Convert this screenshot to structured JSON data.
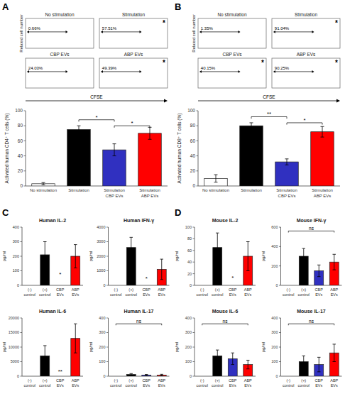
{
  "chart_data": [
    {
      "type": "flow",
      "panel": "A",
      "title": "No stimulation",
      "ylabel": "Related cell number",
      "xlabel": "CFSE",
      "annotations": [
        {
          "label": "0.66%"
        }
      ]
    },
    {
      "type": "flow",
      "title": "Stimulation",
      "annotations": [
        {
          "label": "57.51%"
        },
        {
          "label": "*"
        }
      ]
    },
    {
      "type": "flow",
      "title": "CBP EVs",
      "annotations": [
        {
          "label": "24.03%"
        }
      ]
    },
    {
      "type": "flow",
      "title": "ABP EVs",
      "annotations": [
        {
          "label": "49.39%"
        },
        {
          "label": "*"
        }
      ]
    },
    {
      "type": "bar",
      "ylabel": "Activated human CD4⁺ T cells (%)",
      "categories": [
        "No stimulation",
        "Stimulation",
        "Stimulation\nCBP EVs",
        "Stimulation\nABP EVs"
      ],
      "values": [
        3,
        75,
        48,
        70
      ],
      "errors": [
        1.5,
        5,
        8,
        8
      ],
      "colors": [
        "white",
        "black",
        "#3030c0",
        "red"
      ],
      "ylim": [
        0,
        100
      ],
      "yticks": [
        0,
        20,
        40,
        60,
        80,
        100
      ],
      "annotations": [
        {
          "label": "*",
          "between": [
            1,
            2
          ],
          "y": 88
        },
        {
          "label": "*",
          "between": [
            2,
            3
          ],
          "y": 80
        }
      ]
    },
    {
      "type": "flow",
      "panel": "B",
      "title": "No stimulation",
      "ylabel": "Related cell number",
      "xlabel": "CFSE",
      "annotations": [
        {
          "label": "1.35%"
        }
      ]
    },
    {
      "type": "flow",
      "title": "Stimulation",
      "annotations": [
        {
          "label": "91.04%"
        },
        {
          "label": "*"
        }
      ]
    },
    {
      "type": "flow",
      "title": "CBP EVs",
      "annotations": [
        {
          "label": "40.15%"
        },
        {
          "label": "*"
        }
      ]
    },
    {
      "type": "flow",
      "title": "ABP EVs",
      "annotations": [
        {
          "label": "90.25%"
        },
        {
          "label": "*"
        }
      ]
    },
    {
      "type": "bar",
      "ylabel": "Activated human CD8⁺ T cells (%)",
      "categories": [
        "No stimulation",
        "Stimulation",
        "Stimulation\nCBP EVs",
        "Stimulation\nABP EVs"
      ],
      "values": [
        10,
        80,
        32,
        72
      ],
      "errors": [
        5,
        4,
        4,
        7
      ],
      "colors": [
        "white",
        "black",
        "#3030c0",
        "red"
      ],
      "ylim": [
        0,
        100
      ],
      "yticks": [
        0,
        20,
        40,
        60,
        80,
        100
      ],
      "annotations": [
        {
          "label": "**",
          "between": [
            1,
            2
          ],
          "y": 92
        },
        {
          "label": "*",
          "between": [
            2,
            3
          ],
          "y": 84
        }
      ]
    },
    {
      "type": "bar",
      "panel": "C",
      "title": "Human IL-2",
      "ylabel": "pg/ml",
      "ylim": [
        0,
        400
      ],
      "yticks": [
        0,
        100,
        200,
        300,
        400
      ],
      "values": [
        0,
        210,
        0,
        200
      ],
      "errors": [
        0,
        90,
        0,
        80
      ],
      "colors": [
        "white",
        "black",
        "#3030c0",
        "red"
      ],
      "categories": [
        "(-)\ncontrol",
        "(+)\ncontrol",
        "CBP\nEVs",
        "ABP\nEVs"
      ],
      "annotations": [
        {
          "label": "*",
          "at": 2,
          "y": 60
        }
      ]
    },
    {
      "type": "bar",
      "title": "Human IFN-γ",
      "ylabel": "pg/ml",
      "ylim": [
        0,
        4000
      ],
      "yticks": [
        0,
        1000,
        2000,
        3000,
        4000
      ],
      "values": [
        0,
        2600,
        0,
        1100
      ],
      "errors": [
        0,
        700,
        0,
        700
      ],
      "colors": [
        "white",
        "black",
        "#3030c0",
        "red"
      ],
      "categories": [
        "(-)\ncontrol",
        "(+)\ncontrol",
        "CBP\nEVs",
        "ABP\nEVs"
      ],
      "annotations": [
        {
          "label": "*",
          "at": 2,
          "y": 300
        }
      ]
    },
    {
      "type": "bar",
      "title": "Human IL-6",
      "ylabel": "pg/ml",
      "ylim": [
        0,
        20000
      ],
      "yticks": [
        0,
        5000,
        10000,
        15000,
        20000
      ],
      "values": [
        0,
        7000,
        0,
        13000
      ],
      "errors": [
        0,
        3500,
        0,
        5000
      ],
      "colors": [
        "white",
        "black",
        "#3030c0",
        "red"
      ],
      "categories": [
        "(-)\ncontrol",
        "(+)\ncontrol",
        "CBP\nEVs",
        "ABP\nEVs"
      ],
      "annotations": [
        {
          "label": "**",
          "at": 2,
          "y": 700
        }
      ]
    },
    {
      "type": "bar",
      "title": "Human IL-17",
      "ylabel": "pg/ml",
      "ylim": [
        0,
        400
      ],
      "yticks": [
        0,
        100,
        200,
        300,
        400
      ],
      "values": [
        0,
        12,
        8,
        8
      ],
      "errors": [
        0,
        6,
        4,
        5
      ],
      "colors": [
        "white",
        "black",
        "#3030c0",
        "red"
      ],
      "categories": [
        "(-)\ncontrol",
        "(+)\ncontrol",
        "CBP\nEVs",
        "ABP\nEVs"
      ],
      "annotations": [
        {
          "label": "ns",
          "between": [
            0,
            3
          ],
          "y": 360
        }
      ]
    },
    {
      "type": "bar",
      "panel": "D",
      "title": "Mouse IL-2",
      "ylabel": "pg/ml",
      "ylim": [
        0,
        100
      ],
      "yticks": [
        0,
        20,
        40,
        60,
        80,
        100
      ],
      "values": [
        0,
        65,
        0,
        50
      ],
      "errors": [
        0,
        25,
        0,
        25
      ],
      "colors": [
        "white",
        "black",
        "#3030c0",
        "red"
      ],
      "categories": [
        "(-)\ncontrol",
        "(+)\ncontrol",
        "CBP\nEVs",
        "ABP\nEVs"
      ],
      "annotations": [
        {
          "label": "*",
          "at": 2,
          "y": 8
        }
      ]
    },
    {
      "type": "bar",
      "title": "Mouse IFN-γ",
      "ylabel": "pg/ml",
      "ylim": [
        0,
        600
      ],
      "yticks": [
        0,
        200,
        400,
        600
      ],
      "values": [
        0,
        300,
        150,
        240
      ],
      "errors": [
        0,
        80,
        60,
        80
      ],
      "colors": [
        "white",
        "black",
        "#3030c0",
        "red"
      ],
      "categories": [
        "(-)\ncontrol",
        "(+)\ncontrol",
        "CBP\nEVs",
        "ABP\nEVs"
      ],
      "annotations": [
        {
          "label": "ns",
          "between": [
            0,
            3
          ],
          "y": 560
        }
      ]
    },
    {
      "type": "bar",
      "title": "Mouse IL-6",
      "ylabel": "pg/ml",
      "ylim": [
        0,
        400
      ],
      "yticks": [
        0,
        100,
        200,
        300,
        400
      ],
      "values": [
        0,
        140,
        120,
        80
      ],
      "errors": [
        0,
        40,
        40,
        30
      ],
      "colors": [
        "white",
        "black",
        "#3030c0",
        "red"
      ],
      "categories": [
        "(-)\ncontrol",
        "(+)\ncontrol",
        "CBP\nEVs",
        "ABP\nEVs"
      ],
      "annotations": [
        {
          "label": "ns",
          "between": [
            0,
            3
          ],
          "y": 360
        }
      ]
    },
    {
      "type": "bar",
      "title": "Mouse IL-17",
      "ylabel": "pg/ml",
      "ylim": [
        0,
        400
      ],
      "yticks": [
        0,
        100,
        200,
        300,
        400
      ],
      "values": [
        0,
        100,
        80,
        160
      ],
      "errors": [
        0,
        40,
        50,
        60
      ],
      "colors": [
        "white",
        "black",
        "#3030c0",
        "red"
      ],
      "categories": [
        "(-)\ncontrol",
        "(+)\ncontrol",
        "CBP\nEVs",
        "ABP\nEVs"
      ],
      "annotations": [
        {
          "label": "ns",
          "between": [
            0,
            3
          ],
          "y": 360
        }
      ]
    }
  ]
}
